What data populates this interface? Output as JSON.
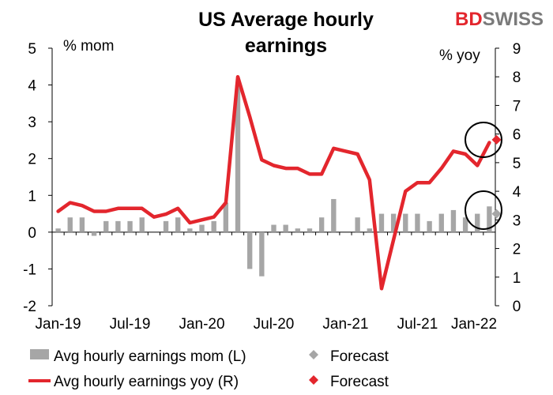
{
  "brand": {
    "part1": "BD",
    "part2": "SWISS",
    "color1": "#e3262d",
    "color2": "#7a7a7a"
  },
  "chart_data": {
    "type": "bar",
    "title_line1": "US Average hourly",
    "title_line2": "earnings",
    "left_unit": "% mom",
    "right_unit": "% yoy",
    "left_ylim": [
      -2,
      5
    ],
    "right_ylim": [
      0,
      9
    ],
    "left_ticks": [
      "-2",
      "-1",
      "0",
      "1",
      "2",
      "3",
      "4",
      "5"
    ],
    "right_ticks": [
      "0",
      "1",
      "2",
      "3",
      "4",
      "5",
      "6",
      "7",
      "8",
      "9"
    ],
    "x_ticks": [
      "Jan-19",
      "Jul-19",
      "Jan-20",
      "Jul-20",
      "Jan-21",
      "Jul-21",
      "Jan-22"
    ],
    "grid": false,
    "legend_position": "bottom",
    "months": [
      "Jan-19",
      "Feb-19",
      "Mar-19",
      "Apr-19",
      "May-19",
      "Jun-19",
      "Jul-19",
      "Aug-19",
      "Sep-19",
      "Oct-19",
      "Nov-19",
      "Dec-19",
      "Jan-20",
      "Feb-20",
      "Mar-20",
      "Apr-20",
      "May-20",
      "Jun-20",
      "Jul-20",
      "Aug-20",
      "Sep-20",
      "Oct-20",
      "Nov-20",
      "Dec-20",
      "Jan-21",
      "Feb-21",
      "Mar-21",
      "Apr-21",
      "May-21",
      "Jun-21",
      "Jul-21",
      "Aug-21",
      "Sep-21",
      "Oct-21",
      "Nov-21",
      "Dec-21",
      "Jan-22"
    ],
    "series": [
      {
        "name": "Avg hourly earnings mom (L)",
        "axis": "left",
        "kind": "bar",
        "color": "#a6a6a6",
        "values": [
          0.1,
          0.4,
          0.4,
          -0.1,
          0.3,
          0.3,
          0.3,
          0.4,
          0.0,
          0.3,
          0.4,
          0.1,
          0.2,
          0.3,
          0.8,
          4.0,
          -1.0,
          -1.2,
          0.2,
          0.2,
          0.1,
          0.1,
          0.4,
          0.9,
          0.0,
          0.4,
          0.1,
          0.5,
          0.5,
          0.5,
          0.5,
          0.3,
          0.5,
          0.6,
          0.4,
          0.5,
          0.7
        ]
      },
      {
        "name": "Avg hourly earnings yoy (R)",
        "axis": "right",
        "kind": "line",
        "color": "#e3262d",
        "values": [
          3.3,
          3.6,
          3.5,
          3.3,
          3.3,
          3.4,
          3.4,
          3.4,
          3.1,
          3.2,
          3.4,
          2.9,
          3.0,
          3.1,
          3.6,
          8.0,
          6.6,
          5.1,
          4.9,
          4.8,
          4.8,
          4.6,
          4.6,
          5.5,
          5.4,
          5.3,
          4.4,
          0.6,
          2.3,
          4.0,
          4.3,
          4.3,
          4.8,
          5.4,
          5.3,
          4.9,
          5.7
        ]
      }
    ],
    "forecasts": [
      {
        "name": "Forecast",
        "axis": "left",
        "month": "Jan-22",
        "value": 0.5,
        "color": "#a6a6a6"
      },
      {
        "name": "Forecast",
        "axis": "right",
        "month": "Jan-22",
        "value": 5.8,
        "color": "#e3262d"
      }
    ]
  }
}
